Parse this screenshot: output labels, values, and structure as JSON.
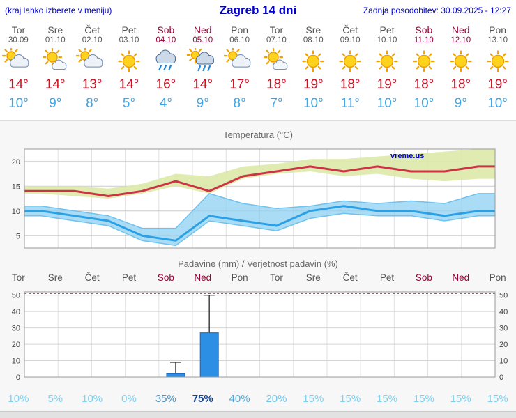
{
  "header": {
    "menu_hint": "(kraj lahko izberete v meniju)",
    "title": "Zagreb 14 dni",
    "last_update": "Zadnja posodobitev: 30.09.2025 - 12:27"
  },
  "forecast": {
    "days": [
      {
        "name": "Tor",
        "date": "30.09",
        "weekend": false,
        "icon": "cloud-sun",
        "high": "14°",
        "low": "10°"
      },
      {
        "name": "Sre",
        "date": "01.10",
        "weekend": false,
        "icon": "sun-cloud",
        "high": "14°",
        "low": "9°"
      },
      {
        "name": "Čet",
        "date": "02.10",
        "weekend": false,
        "icon": "cloud-sun",
        "high": "13°",
        "low": "8°"
      },
      {
        "name": "Pet",
        "date": "03.10",
        "weekend": false,
        "icon": "sunny",
        "high": "14°",
        "low": "5°"
      },
      {
        "name": "Sob",
        "date": "04.10",
        "weekend": true,
        "icon": "rain",
        "high": "16°",
        "low": "4°"
      },
      {
        "name": "Ned",
        "date": "05.10",
        "weekend": true,
        "icon": "rain-sun",
        "high": "14°",
        "low": "9°"
      },
      {
        "name": "Pon",
        "date": "06.10",
        "weekend": false,
        "icon": "cloud-sun",
        "high": "17°",
        "low": "8°"
      },
      {
        "name": "Tor",
        "date": "07.10",
        "weekend": false,
        "icon": "sun-cloud",
        "high": "18°",
        "low": "7°"
      },
      {
        "name": "Sre",
        "date": "08.10",
        "weekend": false,
        "icon": "sunny",
        "high": "19°",
        "low": "10°"
      },
      {
        "name": "Čet",
        "date": "09.10",
        "weekend": false,
        "icon": "sunny",
        "high": "18°",
        "low": "11°"
      },
      {
        "name": "Pet",
        "date": "10.10",
        "weekend": false,
        "icon": "sunny",
        "high": "19°",
        "low": "10°"
      },
      {
        "name": "Sob",
        "date": "11.10",
        "weekend": true,
        "icon": "sunny",
        "high": "18°",
        "low": "10°"
      },
      {
        "name": "Ned",
        "date": "12.10",
        "weekend": true,
        "icon": "sunny",
        "high": "18°",
        "low": "9°"
      },
      {
        "name": "Pon",
        "date": "13.10",
        "weekend": false,
        "icon": "sunny",
        "high": "19°",
        "low": "10°"
      }
    ]
  },
  "chart_data": [
    {
      "type": "line",
      "title": "Temperatura (°C)",
      "watermark": "vreme.us",
      "x_days": [
        "Tor 30.09",
        "Sre 01.10",
        "Čet 02.10",
        "Pet 03.10",
        "Sob 04.10",
        "Ned 05.10",
        "Pon 06.10",
        "Tor 07.10",
        "Sre 08.10",
        "Čet 09.10",
        "Pet 10.10",
        "Sob 11.10",
        "Ned 12.10",
        "Pon 13.10"
      ],
      "ylim": [
        2.5,
        22.5
      ],
      "yticks": [
        5,
        10,
        15,
        20
      ],
      "tmax": [
        14,
        14,
        13,
        14,
        16,
        14,
        17,
        18,
        19,
        18,
        19,
        18,
        18,
        19
      ],
      "tmin": [
        10,
        9,
        8,
        5,
        4,
        9,
        8,
        7,
        10,
        11,
        10,
        10,
        9,
        10
      ],
      "tmax_hi": [
        15,
        15,
        14.5,
        15.5,
        17.5,
        17,
        19,
        19.5,
        20.5,
        20.5,
        21,
        21.5,
        22,
        22.5
      ],
      "tmax_lo": [
        13.5,
        13,
        12.5,
        13.5,
        15,
        13.5,
        16.5,
        17.5,
        18,
        17,
        17.5,
        16.5,
        16,
        16.5
      ],
      "tmin_hi": [
        11,
        10,
        9,
        6.5,
        6.5,
        13.5,
        11.5,
        10.5,
        11,
        12,
        11.5,
        12,
        11.5,
        13.5
      ],
      "tmin_lo": [
        9,
        8,
        7,
        4,
        3,
        8,
        7,
        6,
        8.5,
        9.5,
        9,
        9,
        8,
        9
      ],
      "legend_position": "none",
      "grid": true
    },
    {
      "type": "bar",
      "title": "Padavine (mm) / Verjetnost padavin (%)",
      "categories": [
        {
          "label": "Tor",
          "weekend": false
        },
        {
          "label": "Sre",
          "weekend": false
        },
        {
          "label": "Čet",
          "weekend": false
        },
        {
          "label": "Pet",
          "weekend": false
        },
        {
          "label": "Sob",
          "weekend": true
        },
        {
          "label": "Ned",
          "weekend": true
        },
        {
          "label": "Pon",
          "weekend": false
        },
        {
          "label": "Tor",
          "weekend": false
        },
        {
          "label": "Sre",
          "weekend": false
        },
        {
          "label": "Čet",
          "weekend": false
        },
        {
          "label": "Pet",
          "weekend": false
        },
        {
          "label": "Sob",
          "weekend": true
        },
        {
          "label": "Ned",
          "weekend": true
        },
        {
          "label": "Pon",
          "weekend": false
        }
      ],
      "ylim": [
        0,
        52
      ],
      "yticks": [
        0,
        10,
        20,
        30,
        40,
        50
      ],
      "values": [
        0,
        0,
        0,
        0,
        2,
        27,
        0,
        0,
        0,
        0,
        0,
        0,
        0,
        0
      ],
      "whisker_hi": [
        0,
        0,
        0,
        0,
        9,
        50,
        0,
        0,
        0,
        0,
        0,
        0,
        0,
        0
      ],
      "red_dashed_y": 51,
      "probabilities": [
        {
          "label": "10%",
          "color": "#7cd1ef",
          "bold": false
        },
        {
          "label": "5%",
          "color": "#7cd1ef",
          "bold": false
        },
        {
          "label": "10%",
          "color": "#7cd1ef",
          "bold": false
        },
        {
          "label": "0%",
          "color": "#7cd1ef",
          "bold": false
        },
        {
          "label": "35%",
          "color": "#4e8fb8",
          "bold": false
        },
        {
          "label": "75%",
          "color": "#16418f",
          "bold": true
        },
        {
          "label": "40%",
          "color": "#4fa6d6",
          "bold": false
        },
        {
          "label": "20%",
          "color": "#6fc6e9",
          "bold": false
        },
        {
          "label": "15%",
          "color": "#7cd1ef",
          "bold": false
        },
        {
          "label": "15%",
          "color": "#7cd1ef",
          "bold": false
        },
        {
          "label": "15%",
          "color": "#7cd1ef",
          "bold": false
        },
        {
          "label": "15%",
          "color": "#7cd1ef",
          "bold": false
        },
        {
          "label": "15%",
          "color": "#7cd1ef",
          "bold": false
        },
        {
          "label": "15%",
          "color": "#7cd1ef",
          "bold": false
        }
      ],
      "grid": true
    }
  ],
  "colors": {
    "link_blue": "#0000cc",
    "weekday_text": "#555555",
    "weekend_text": "#990033",
    "temp_high": "#cc1122",
    "temp_low": "#3fa5e6",
    "tmax_line": "#cc3344",
    "tmin_line": "#2aa0e6",
    "tmax_band": "#dce9a8",
    "tmin_band": "#8fd0f2",
    "band_edge": "#6fc2ee",
    "bar_fill": "#2d8fe3",
    "bar_stroke": "#1565c0",
    "whisker": "#333333",
    "red_dashed": "#dd4444"
  }
}
